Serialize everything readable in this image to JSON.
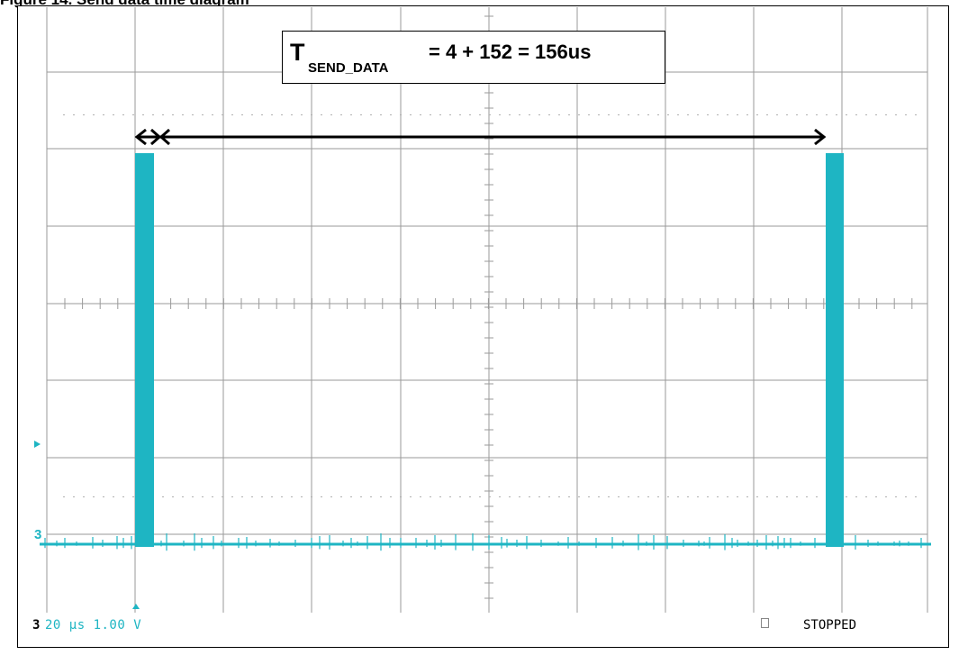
{
  "caption": "Figure 14. Send data time diagram",
  "annotation": {
    "symbol": "T",
    "subscript": "SEND_DATA",
    "equation": "=  4  + 152 = 156us"
  },
  "status_bar": {
    "channel": "3",
    "readout": "20 µs  1.00 V",
    "state": "STOPPED"
  },
  "channel_marker": "3",
  "colors": {
    "trace": "#1eb5c3",
    "grid": "#9a9a9a",
    "arrow": "#000000"
  }
}
